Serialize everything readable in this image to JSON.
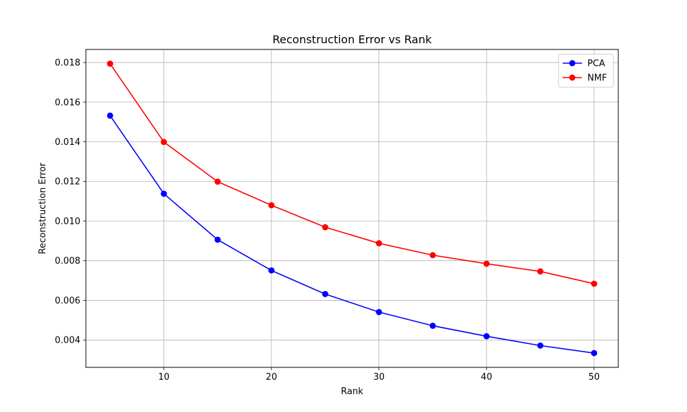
{
  "chart_data": {
    "type": "line",
    "title": "Reconstruction Error vs Rank",
    "xlabel": "Rank",
    "ylabel": "Reconstruction Error",
    "xlim": [
      2.75,
      52.25
    ],
    "ylim": [
      0.00262,
      0.01866
    ],
    "xticks": [
      10,
      20,
      30,
      40,
      50
    ],
    "yticks": [
      0.004,
      0.006,
      0.008,
      0.01,
      0.012,
      0.014,
      0.016,
      0.018
    ],
    "ytick_labels": [
      "0.004",
      "0.006",
      "0.008",
      "0.010",
      "0.012",
      "0.014",
      "0.016",
      "0.018"
    ],
    "grid": true,
    "legend_position": "top-right",
    "x": [
      5,
      10,
      15,
      20,
      25,
      30,
      35,
      40,
      45,
      50
    ],
    "series": [
      {
        "name": "PCA",
        "color": "#0000ff",
        "marker": "circle",
        "values": [
          0.01532,
          0.01138,
          0.00906,
          0.00751,
          0.00632,
          0.00541,
          0.00472,
          0.00419,
          0.00372,
          0.00334
        ]
      },
      {
        "name": "NMF",
        "color": "#ff0000",
        "marker": "circle",
        "values": [
          0.01794,
          0.01399,
          0.01199,
          0.0108,
          0.00969,
          0.00888,
          0.00828,
          0.00785,
          0.00746,
          0.00684
        ]
      }
    ]
  }
}
